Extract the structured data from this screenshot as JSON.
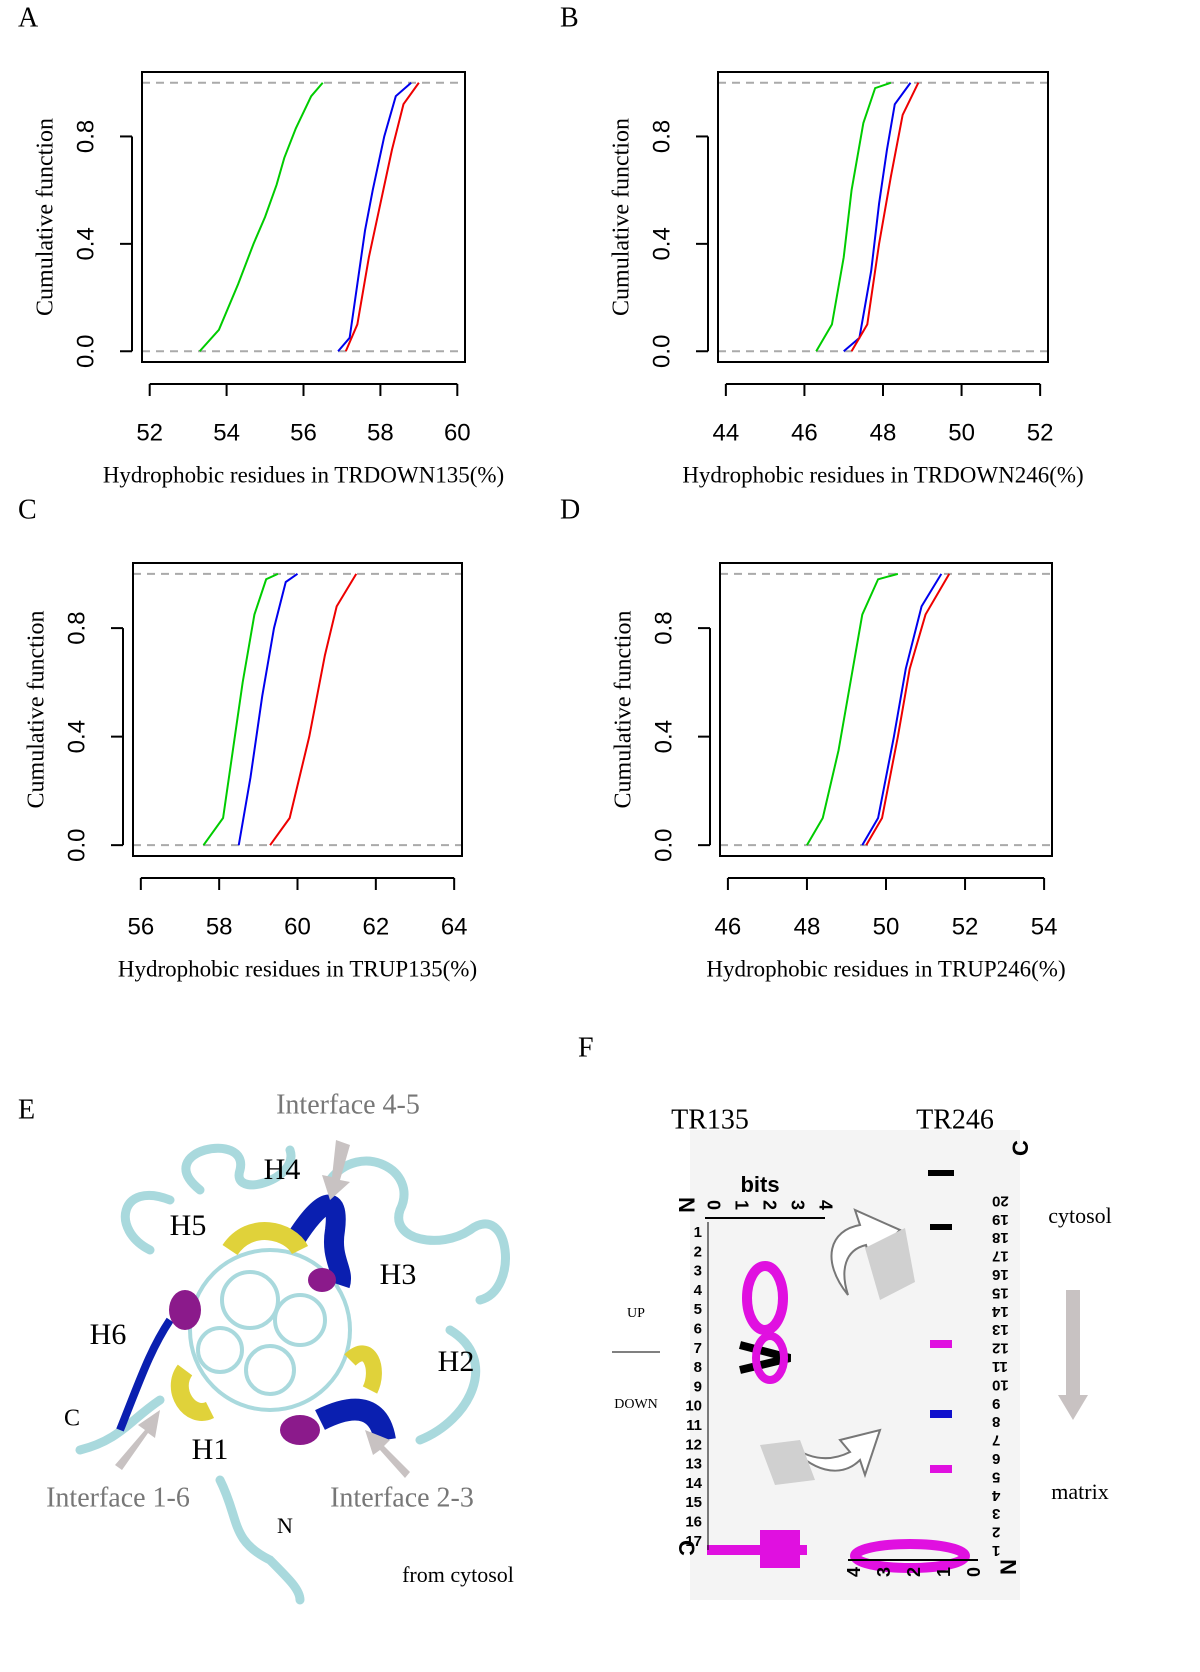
{
  "chart_data": [
    {
      "type": "line",
      "panel": "A",
      "xlabel": "Hydrophobic residues in TRDOWN135(%)",
      "ylabel": "Cumulative function",
      "xlim": [
        51.8,
        60.2
      ],
      "ylim": [
        -0.04,
        1.04
      ],
      "xticks": [
        52,
        54,
        56,
        58,
        60
      ],
      "yticks": [
        {
          "value": 0,
          "label": "0.0"
        },
        0.4,
        0.8
      ],
      "hlines": [
        0,
        1
      ],
      "series": [
        {
          "color": "#00cc00",
          "x": [
            53.3,
            53.8,
            54.3,
            54.7,
            55.0,
            55.3,
            55.5,
            55.8,
            56.2,
            56.5
          ],
          "values": [
            0,
            0.08,
            0.25,
            0.4,
            0.5,
            0.62,
            0.72,
            0.83,
            0.95,
            1
          ]
        },
        {
          "color": "#0000ee",
          "x": [
            56.9,
            57.2,
            57.4,
            57.6,
            57.8,
            58.1,
            58.4,
            58.8
          ],
          "values": [
            0,
            0.05,
            0.25,
            0.45,
            0.6,
            0.8,
            0.95,
            1
          ]
        },
        {
          "color": "#ee0000",
          "x": [
            57.1,
            57.4,
            57.7,
            58.0,
            58.3,
            58.6,
            59.0
          ],
          "values": [
            0,
            0.1,
            0.35,
            0.55,
            0.75,
            0.92,
            1
          ]
        }
      ]
    },
    {
      "type": "line",
      "panel": "B",
      "xlabel": "Hydrophobic residues in TRDOWN246(%)",
      "ylabel": "Cumulative function",
      "xlim": [
        43.8,
        52.2
      ],
      "ylim": [
        -0.04,
        1.04
      ],
      "xticks": [
        44,
        46,
        48,
        50,
        52
      ],
      "yticks": [
        {
          "value": 0,
          "label": "0.0"
        },
        0.4,
        0.8
      ],
      "hlines": [
        0,
        1
      ],
      "series": [
        {
          "color": "#00cc00",
          "x": [
            46.3,
            46.7,
            47.0,
            47.2,
            47.5,
            47.8,
            48.2
          ],
          "values": [
            0,
            0.1,
            0.35,
            0.6,
            0.85,
            0.98,
            1
          ]
        },
        {
          "color": "#0000ee",
          "x": [
            47.0,
            47.4,
            47.7,
            47.9,
            48.1,
            48.3,
            48.7
          ],
          "values": [
            0,
            0.05,
            0.3,
            0.55,
            0.75,
            0.92,
            1
          ]
        },
        {
          "color": "#ee0000",
          "x": [
            47.2,
            47.6,
            47.9,
            48.2,
            48.5,
            48.9
          ],
          "values": [
            0,
            0.1,
            0.4,
            0.65,
            0.88,
            1
          ]
        }
      ]
    },
    {
      "type": "line",
      "panel": "C",
      "xlabel": "Hydrophobic residues in TRUP135(%)",
      "ylabel": "Cumulative function",
      "xlim": [
        55.8,
        64.2
      ],
      "ylim": [
        -0.04,
        1.04
      ],
      "xticks": [
        56,
        58,
        60,
        62,
        64
      ],
      "yticks": [
        {
          "value": 0,
          "label": "0.0"
        },
        0.4,
        0.8
      ],
      "hlines": [
        0,
        1
      ],
      "series": [
        {
          "color": "#00cc00",
          "x": [
            57.6,
            58.1,
            58.3,
            58.6,
            58.9,
            59.2,
            59.5
          ],
          "values": [
            0,
            0.1,
            0.3,
            0.6,
            0.85,
            0.98,
            1
          ]
        },
        {
          "color": "#0000ee",
          "x": [
            58.5,
            58.8,
            59.1,
            59.4,
            59.7,
            60.0
          ],
          "values": [
            0,
            0.25,
            0.55,
            0.8,
            0.97,
            1
          ]
        },
        {
          "color": "#ee0000",
          "x": [
            59.3,
            59.8,
            60.3,
            60.7,
            61.0,
            61.5
          ],
          "values": [
            0,
            0.1,
            0.4,
            0.7,
            0.88,
            1
          ]
        }
      ]
    },
    {
      "type": "line",
      "panel": "D",
      "xlabel": "Hydrophobic residues in TRUP246(%)",
      "ylabel": "Cumulative function",
      "xlim": [
        45.8,
        54.2
      ],
      "ylim": [
        -0.04,
        1.04
      ],
      "xticks": [
        46,
        48,
        50,
        52,
        54
      ],
      "yticks": [
        {
          "value": 0,
          "label": "0.0"
        },
        0.4,
        0.8
      ],
      "hlines": [
        0,
        1
      ],
      "series": [
        {
          "color": "#00cc00",
          "x": [
            48.0,
            48.4,
            48.8,
            49.1,
            49.4,
            49.8,
            50.3
          ],
          "values": [
            0,
            0.1,
            0.35,
            0.6,
            0.85,
            0.98,
            1
          ]
        },
        {
          "color": "#0000ee",
          "x": [
            49.4,
            49.8,
            50.2,
            50.5,
            50.9,
            51.4
          ],
          "values": [
            0,
            0.1,
            0.4,
            0.65,
            0.88,
            1
          ]
        },
        {
          "color": "#ee0000",
          "x": [
            49.5,
            49.9,
            50.3,
            50.6,
            51.0,
            51.6
          ],
          "values": [
            0,
            0.1,
            0.4,
            0.65,
            0.85,
            1
          ]
        }
      ]
    }
  ],
  "panel_e": {
    "label": "E",
    "interface_45": "Interface 4-5",
    "interface_16": "Interface 1-6",
    "interface_23": "Interface 2-3",
    "h1": "H1",
    "h2": "H2",
    "h3": "H3",
    "h4": "H4",
    "h5": "H5",
    "h6": "H6",
    "c_term": "C",
    "n_term": "N",
    "view": "from cytosol"
  },
  "panel_f": {
    "label": "F",
    "left_title": "TR135",
    "right_title": "TR246",
    "bits": "bits",
    "n_left": "N",
    "c_left": "C",
    "n_right": "N",
    "c_right": "C",
    "up": "UP",
    "down": "DOWN",
    "cytosol": "cytosol",
    "matrix": "matrix",
    "left_bits_ticks": [
      0,
      1,
      2,
      3,
      4
    ],
    "right_bits_ticks": [
      4,
      3,
      2,
      1,
      0
    ],
    "left_positions": [
      1,
      2,
      3,
      4,
      5,
      6,
      7,
      8,
      9,
      10,
      11,
      12,
      13,
      14,
      15,
      16,
      17
    ],
    "right_positions": [
      1,
      2,
      3,
      4,
      5,
      6,
      7,
      8,
      9,
      10,
      11,
      12,
      13,
      14,
      15,
      16,
      17,
      18,
      19,
      20
    ]
  }
}
